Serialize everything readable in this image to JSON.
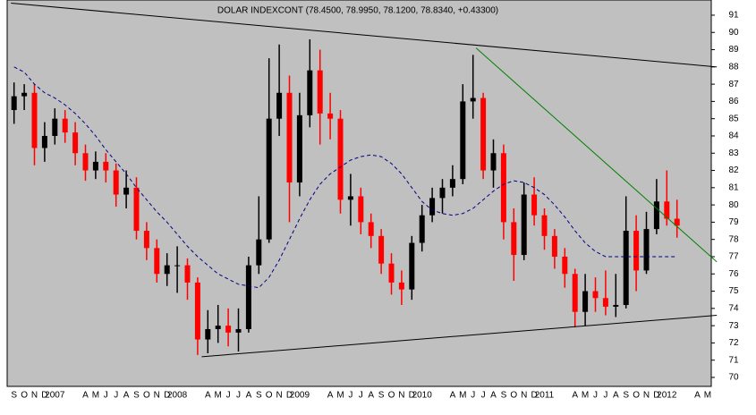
{
  "chart_data": {
    "type": "candlestick",
    "title": "DOLAR INDEXCONT (78.4500, 78.9950, 78.1200, 78.8340, +0.43300)",
    "categories": [
      "S",
      "O",
      "N",
      "D",
      "2007",
      null,
      null,
      "A",
      "M",
      "J",
      "J",
      "A",
      "S",
      "O",
      "N",
      "D",
      "2008",
      null,
      null,
      "A",
      "M",
      "J",
      "J",
      "A",
      "S",
      "O",
      "N",
      "D",
      "2009",
      null,
      null,
      "A",
      "M",
      "J",
      "J",
      "A",
      "S",
      "O",
      "N",
      "D",
      "2010",
      null,
      null,
      "A",
      "M",
      "J",
      "J",
      "A",
      "S",
      "O",
      "N",
      "D",
      "2011",
      null,
      null,
      "A",
      "M",
      "J",
      "J",
      "A",
      "S",
      "O",
      "N",
      "D",
      "2012",
      null,
      null,
      "A",
      "M"
    ],
    "open": [
      85.5,
      86.3,
      86.5,
      83.3,
      84.0,
      85.0,
      84.2,
      83.0,
      82.0,
      82.5,
      82.0,
      80.6,
      81.0,
      78.5,
      77.5,
      76.0,
      76.5,
      76.5,
      75.5,
      72.2,
      72.8,
      73.0,
      72.6,
      72.8,
      76.5,
      78.0,
      85.0,
      86.5,
      81.3,
      85.2,
      87.8,
      85.3,
      85.0,
      80.3,
      80.5,
      79.0,
      78.2,
      76.6,
      75.5,
      75.1,
      77.8,
      79.4,
      80.4,
      81.0,
      81.5,
      86.0,
      86.2,
      82.0,
      83.0,
      79.0,
      77.1,
      80.6,
      79.4,
      78.2,
      77.0,
      76.0,
      73.8,
      75.0,
      74.6,
      74.1,
      74.2,
      78.5,
      76.2,
      78.6,
      80.2,
      79.2,
      null,
      null,
      null
    ],
    "high": [
      87.1,
      87.0,
      87.0,
      84.8,
      85.6,
      85.5,
      84.8,
      83.5,
      83.1,
      83.0,
      82.4,
      82.0,
      81.6,
      79.0,
      78.0,
      77.2,
      77.6,
      76.9,
      75.8,
      73.9,
      74.2,
      74.0,
      74.0,
      77.0,
      80.5,
      88.5,
      89.3,
      87.5,
      86.5,
      89.6,
      89.0,
      86.5,
      85.5,
      81.8,
      81.0,
      79.5,
      78.6,
      77.2,
      76.2,
      78.2,
      80.0,
      81.0,
      81.5,
      82.3,
      87.0,
      88.7,
      86.5,
      83.8,
      83.5,
      79.8,
      81.3,
      81.6,
      79.8,
      78.6,
      77.5,
      76.3,
      76.0,
      75.8,
      76.2,
      76.0,
      80.5,
      79.4,
      79.6,
      81.5,
      82.0,
      80.3,
      null,
      null,
      null
    ],
    "low": [
      84.7,
      85.5,
      82.3,
      82.5,
      83.5,
      83.6,
      82.3,
      81.4,
      81.5,
      81.3,
      79.9,
      79.8,
      78.0,
      76.8,
      75.5,
      75.3,
      74.9,
      74.5,
      71.3,
      71.4,
      72.0,
      71.8,
      71.5,
      72.6,
      76.0,
      77.8,
      84.0,
      79.0,
      80.5,
      84.5,
      83.5,
      83.8,
      79.5,
      78.8,
      78.3,
      77.5,
      76.0,
      74.8,
      74.2,
      74.5,
      77.3,
      79.0,
      79.5,
      80.5,
      81.2,
      85.0,
      81.5,
      81.0,
      78.0,
      75.6,
      76.8,
      78.8,
      77.4,
      76.3,
      75.2,
      72.9,
      73.0,
      73.8,
      73.6,
      73.5,
      74.0,
      75.0,
      76.0,
      78.3,
      78.8,
      78.1,
      null,
      null,
      null
    ],
    "close": [
      86.3,
      86.5,
      83.3,
      84.0,
      85.0,
      84.2,
      83.0,
      82.0,
      82.5,
      82.0,
      80.6,
      81.0,
      78.5,
      77.5,
      76.0,
      76.5,
      76.5,
      75.5,
      72.2,
      72.8,
      73.0,
      72.6,
      72.8,
      76.5,
      78.0,
      85.0,
      86.5,
      81.3,
      85.2,
      87.8,
      85.3,
      85.0,
      80.3,
      80.5,
      79.0,
      78.2,
      76.6,
      75.5,
      75.1,
      77.8,
      79.4,
      80.4,
      81.0,
      81.5,
      86.0,
      86.2,
      82.0,
      83.0,
      79.0,
      77.1,
      80.6,
      79.4,
      78.2,
      77.0,
      76.0,
      73.8,
      75.0,
      74.6,
      74.1,
      74.2,
      78.5,
      76.2,
      78.6,
      80.2,
      79.2,
      78.8,
      null,
      null,
      null
    ],
    "up_color": "#000000",
    "down_color": "#ff0000",
    "moving_average": {
      "color": "#000080",
      "dashed": true,
      "values": [
        88.0,
        87.7,
        87.0,
        86.5,
        86.2,
        85.8,
        85.3,
        84.7,
        84.0,
        83.2,
        82.5,
        81.8,
        81.0,
        80.3,
        79.6,
        79.0,
        78.3,
        77.6,
        77.0,
        76.5,
        76.0,
        75.7,
        75.4,
        75.3,
        75.2,
        75.8,
        76.8,
        78.0,
        79.2,
        80.3,
        81.2,
        81.8,
        82.2,
        82.6,
        82.8,
        82.9,
        82.8,
        82.4,
        81.8,
        81.0,
        80.2,
        79.7,
        79.5,
        79.4,
        79.5,
        79.8,
        80.3,
        80.8,
        81.2,
        81.4,
        81.3,
        81.0,
        80.6,
        80.0,
        79.3,
        78.5,
        77.8,
        77.3,
        77.0,
        77.0,
        77.0,
        77.0,
        77.0,
        77.0,
        77.0,
        77.0,
        null,
        null,
        null
      ]
    },
    "trendlines": [
      {
        "color": "#000000",
        "x": [
          -0.3,
          68.9
        ],
        "y": [
          91.7,
          88.0
        ]
      },
      {
        "color": "#000000",
        "x": [
          18.4,
          68.9
        ],
        "y": [
          71.2,
          73.6
        ]
      },
      {
        "color": "#008000",
        "x": [
          45.3,
          68.9
        ],
        "y": [
          89.1,
          76.7
        ]
      }
    ],
    "ylim": [
      69.48,
      91.88
    ],
    "yticks": [
      70,
      71,
      72,
      73,
      74,
      75,
      76,
      77,
      78,
      79,
      80,
      81,
      82,
      83,
      84,
      85,
      86,
      87,
      88,
      89,
      90,
      91
    ],
    "grid": false
  }
}
